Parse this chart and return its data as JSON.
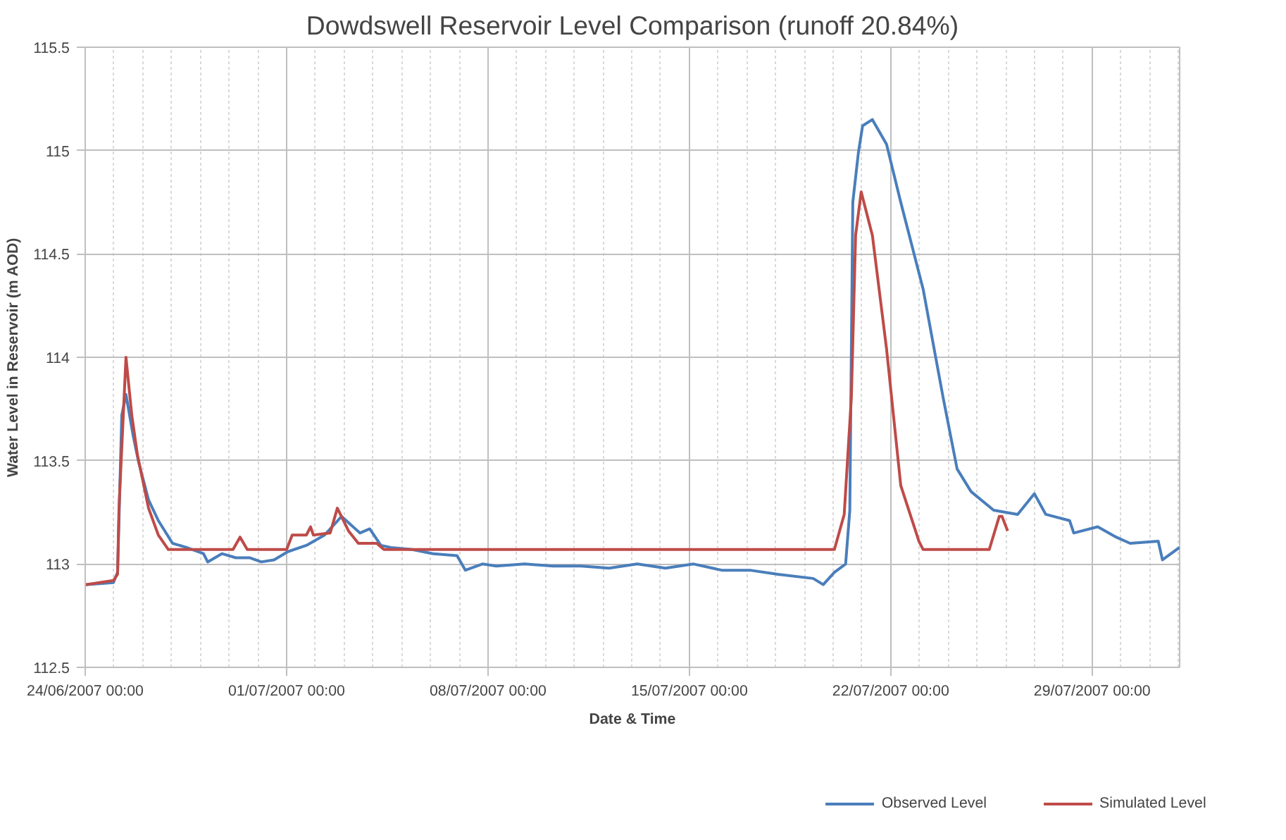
{
  "chart_data": {
    "type": "line",
    "title": "Dowdswell Reservoir Level Comparison (runoff 20.84%)",
    "xlabel": "Date & Time",
    "ylabel": "Water Level in Reservoir (m AOD)",
    "xlim": [
      "2007-06-24T00:00",
      "2007-08-01T01:00"
    ],
    "xticks": [
      {
        "value": "2007-06-24T00:00",
        "label": "24/06/2007 00:00"
      },
      {
        "value": "2007-07-01T00:00",
        "label": "01/07/2007 00:00"
      },
      {
        "value": "2007-07-08T00:00",
        "label": "08/07/2007 00:00"
      },
      {
        "value": "2007-07-15T00:00",
        "label": "15/07/2007 00:00"
      },
      {
        "value": "2007-07-22T00:00",
        "label": "22/07/2007 00:00"
      },
      {
        "value": "2007-07-29T00:00",
        "label": "29/07/2007 00:00"
      }
    ],
    "ylim": [
      112.5,
      115.5
    ],
    "yticks": [
      112.5,
      113,
      113.5,
      114,
      114.5,
      115,
      115.5
    ],
    "grid": true,
    "legend": "bottom",
    "marker": "none",
    "line_style": "solid",
    "series": [
      {
        "name": "Observed Level",
        "color": "#4a7ebb",
        "x": [
          "2007-06-24T00:00",
          "2007-06-24T23:30",
          "2007-06-25T03:00",
          "2007-06-25T06:30",
          "2007-06-25T10:00",
          "2007-06-25T16:00",
          "2007-06-25T20:40",
          "2007-06-26T04:50",
          "2007-06-26T13:00",
          "2007-06-27T00:50",
          "2007-06-27T12:30",
          "2007-06-28T02:40",
          "2007-06-28T06:10",
          "2007-06-28T18:00",
          "2007-06-29T05:40",
          "2007-06-29T17:30",
          "2007-06-30T02:50",
          "2007-06-30T13:30",
          "2007-07-01T01:10",
          "2007-07-01T16:30",
          "2007-07-02T07:40",
          "2007-07-02T21:50",
          "2007-07-03T03:40",
          "2007-07-03T13:10",
          "2007-07-03T21:20",
          "2007-07-04T06:40",
          "2007-07-04T15:00",
          "2007-07-05T08:40",
          "2007-07-06T02:10",
          "2007-07-06T22:10",
          "2007-07-07T05:10",
          "2007-07-07T19:20",
          "2007-07-08T07:00",
          "2007-07-09T06:40",
          "2007-07-10T06:00",
          "2007-07-11T05:30",
          "2007-07-12T05:00",
          "2007-07-13T04:30",
          "2007-07-14T04:00",
          "2007-07-15T03:30",
          "2007-07-16T03:00",
          "2007-07-17T02:30",
          "2007-07-18T02:00",
          "2007-07-19T07:20",
          "2007-07-19T15:40",
          "2007-07-20T01:00",
          "2007-07-20T10:20",
          "2007-07-20T13:50",
          "2007-07-20T16:20",
          "2007-07-20T21:00",
          "2007-07-21T00:30",
          "2007-07-21T08:40",
          "2007-07-21T20:30",
          "2007-07-22T08:20",
          "2007-07-23T03:00",
          "2007-07-23T19:30",
          "2007-07-24T07:20",
          "2007-07-24T19:00",
          "2007-07-25T13:50",
          "2007-07-26T09:50",
          "2007-07-26T23:50",
          "2007-07-27T09:20",
          "2007-07-28T05:10",
          "2007-07-28T08:40",
          "2007-07-29T04:40",
          "2007-07-29T20:00",
          "2007-07-30T07:40",
          "2007-07-31T07:10",
          "2007-07-31T10:40",
          "2007-08-01T00:50"
        ],
        "values": [
          112.9,
          112.91,
          112.96,
          113.72,
          113.82,
          113.62,
          113.49,
          113.31,
          113.21,
          113.1,
          113.08,
          113.05,
          113.01,
          113.05,
          113.03,
          113.03,
          113.01,
          113.02,
          113.06,
          113.09,
          113.14,
          113.23,
          113.2,
          113.15,
          113.17,
          113.09,
          113.08,
          113.07,
          113.05,
          113.04,
          112.97,
          113.0,
          112.99,
          113.0,
          112.99,
          112.99,
          112.98,
          113.0,
          112.98,
          113.0,
          112.97,
          112.97,
          112.95,
          112.93,
          112.9,
          112.96,
          113.0,
          113.26,
          114.75,
          114.99,
          115.12,
          115.15,
          115.03,
          114.75,
          114.33,
          113.81,
          113.46,
          113.35,
          113.26,
          113.24,
          113.34,
          113.24,
          113.21,
          113.15,
          113.18,
          113.13,
          113.1,
          113.11,
          113.02,
          113.08
        ]
      },
      {
        "name": "Simulated Level",
        "color": "#be4b48",
        "x": [
          "2007-06-24T00:00",
          "2007-06-24T23:30",
          "2007-06-25T03:00",
          "2007-06-25T04:10",
          "2007-06-25T10:00",
          "2007-06-25T14:50",
          "2007-06-25T19:30",
          "2007-06-26T04:50",
          "2007-06-26T13:00",
          "2007-06-26T21:20",
          "2007-06-29T03:20",
          "2007-06-29T09:10",
          "2007-06-29T15:10",
          "2007-07-01T00:00",
          "2007-07-01T04:40",
          "2007-07-01T16:30",
          "2007-07-01T20:00",
          "2007-07-01T22:20",
          "2007-07-02T12:20",
          "2007-07-02T18:20",
          "2007-07-03T03:40",
          "2007-07-03T11:50",
          "2007-07-04T03:10",
          "2007-07-04T09:10",
          "2007-07-20T01:00",
          "2007-07-20T09:10",
          "2007-07-20T15:10",
          "2007-07-20T18:40",
          "2007-07-20T23:20",
          "2007-07-21T08:40",
          "2007-07-21T20:30",
          "2007-07-22T08:20",
          "2007-07-22T23:30",
          "2007-07-23T03:00",
          "2007-07-25T10:10",
          "2007-07-25T18:30",
          "2007-07-25T20:50",
          "2007-07-26T01:30"
        ],
        "values": [
          112.9,
          112.92,
          112.95,
          113.27,
          114.0,
          113.72,
          113.53,
          113.27,
          113.14,
          113.07,
          113.07,
          113.13,
          113.07,
          113.07,
          113.14,
          113.14,
          113.18,
          113.14,
          113.15,
          113.27,
          113.16,
          113.1,
          113.1,
          113.07,
          113.07,
          113.24,
          113.81,
          114.59,
          114.8,
          114.59,
          114.04,
          113.38,
          113.11,
          113.07,
          113.07,
          113.23,
          113.23,
          113.16
        ]
      }
    ]
  }
}
